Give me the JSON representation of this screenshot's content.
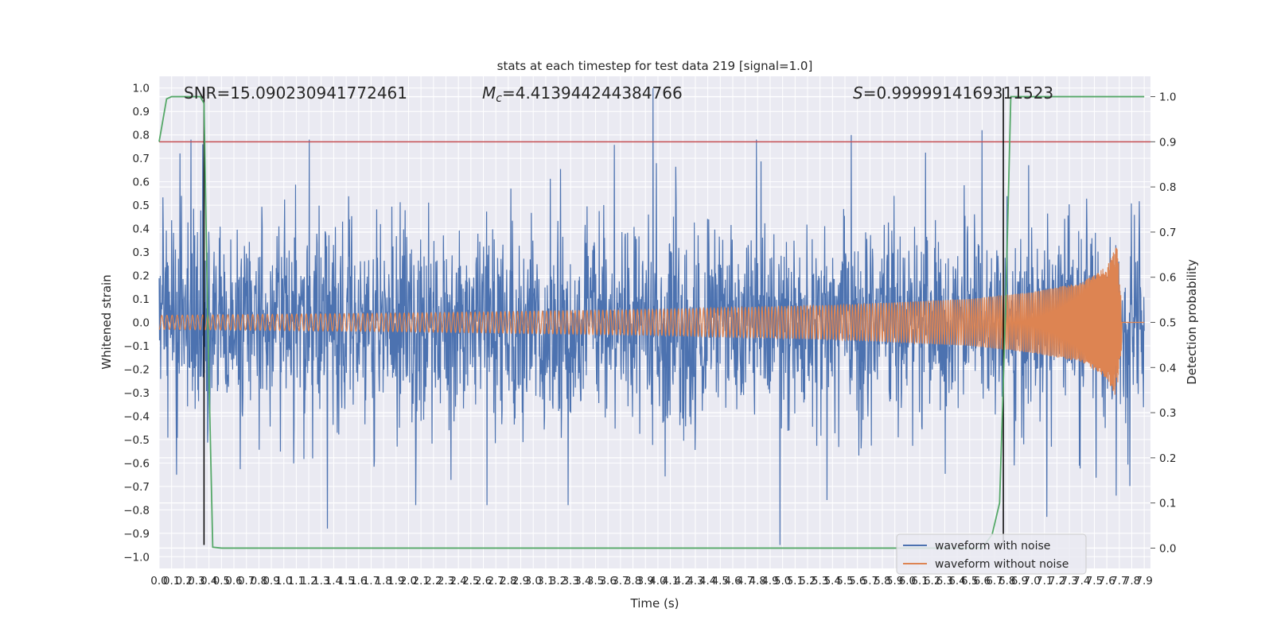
{
  "chart_data": {
    "type": "line",
    "title": "stats at each timestep for test data 219 [signal=1.0]",
    "xlabel": "Time (s)",
    "ylabel": "Whitened strain",
    "y2label": "Detection probability",
    "xlim": [
      0.0,
      7.95
    ],
    "ylim": [
      -1.05,
      1.05
    ],
    "y2lim": [
      -0.045,
      1.045
    ],
    "xticks": [
      0.0,
      0.1,
      0.2,
      0.3,
      0.4,
      0.5,
      0.6,
      0.7,
      0.8,
      0.9,
      1.0,
      1.1,
      1.2,
      1.3,
      1.4,
      1.5,
      1.6,
      1.7,
      1.8,
      1.9,
      2.0,
      2.1,
      2.2,
      2.3,
      2.4,
      2.5,
      2.6,
      2.7,
      2.8,
      2.9,
      3.0,
      3.1,
      3.2,
      3.3,
      3.4,
      3.5,
      3.6,
      3.7,
      3.8,
      3.9,
      4.0,
      4.1,
      4.2,
      4.3,
      4.4,
      4.5,
      4.6,
      4.7,
      4.8,
      4.9,
      5.0,
      5.1,
      5.2,
      5.3,
      5.4,
      5.5,
      5.6,
      5.7,
      5.8,
      5.9,
      6.0,
      6.1,
      6.2,
      6.3,
      6.4,
      6.5,
      6.6,
      6.7,
      6.8,
      6.9,
      7.0,
      7.1,
      7.2,
      7.3,
      7.4,
      7.5,
      7.6,
      7.7,
      7.8,
      7.9
    ],
    "yticks": [
      -1.0,
      -0.9,
      -0.8,
      -0.7,
      -0.6,
      -0.5,
      -0.4,
      -0.3,
      -0.2,
      -0.1,
      0.0,
      0.1,
      0.2,
      0.3,
      0.4,
      0.5,
      0.6,
      0.7,
      0.8,
      0.9,
      1.0
    ],
    "y2ticks": [
      0.0,
      0.1,
      0.2,
      0.3,
      0.4,
      0.5,
      0.6,
      0.7,
      0.8,
      0.9,
      1.0
    ],
    "threshold": 0.9,
    "vlines": [
      0.36,
      6.77
    ],
    "series": [
      {
        "name": "waveform with noise",
        "color": "#4c72b0",
        "peaks": [
          {
            "x": 0.35,
            "y": 0.76
          },
          {
            "x": 3.96,
            "y": 1.0
          },
          {
            "x": 5.55,
            "y": 0.8
          },
          {
            "x": 6.6,
            "y": 0.82
          },
          {
            "x": 1.35,
            "y": -0.88
          },
          {
            "x": 4.98,
            "y": -0.95
          },
          {
            "x": 7.12,
            "y": -0.83
          }
        ]
      },
      {
        "name": "waveform without noise",
        "color": "#dd8452",
        "amplitude": [
          {
            "x": 0.0,
            "y": 0.03
          },
          {
            "x": 2.0,
            "y": 0.04
          },
          {
            "x": 4.0,
            "y": 0.055
          },
          {
            "x": 5.5,
            "y": 0.075
          },
          {
            "x": 6.5,
            "y": 0.1
          },
          {
            "x": 7.0,
            "y": 0.13
          },
          {
            "x": 7.4,
            "y": 0.17
          },
          {
            "x": 7.6,
            "y": 0.24
          },
          {
            "x": 7.68,
            "y": 0.33
          },
          {
            "x": 7.72,
            "y": 0.1
          },
          {
            "x": 7.74,
            "y": 0.0
          },
          {
            "x": 7.95,
            "y": 0.0
          }
        ]
      },
      {
        "name": "detection probability",
        "color": "#55a868",
        "axis": "right",
        "points": [
          {
            "x": 0.0,
            "y": 0.9
          },
          {
            "x": 0.06,
            "y": 0.995
          },
          {
            "x": 0.1,
            "y": 1.0
          },
          {
            "x": 0.33,
            "y": 1.0
          },
          {
            "x": 0.36,
            "y": 0.985
          },
          {
            "x": 0.39,
            "y": 0.5
          },
          {
            "x": 0.43,
            "y": 0.002
          },
          {
            "x": 0.5,
            "y": 0.0
          },
          {
            "x": 6.6,
            "y": 0.0
          },
          {
            "x": 6.68,
            "y": 0.03
          },
          {
            "x": 6.74,
            "y": 0.1
          },
          {
            "x": 6.79,
            "y": 0.55
          },
          {
            "x": 6.83,
            "y": 1.0
          },
          {
            "x": 7.9,
            "y": 1.0
          }
        ]
      }
    ],
    "annotations": {
      "snr": "SNR=15.090230941772461",
      "mc_symbol": "M",
      "mc_sub": "c",
      "mc_value": "=4.413944244384766",
      "s_symbol": "S",
      "s_value": "=0.9999914169311523"
    },
    "legend": {
      "position": "lower-right",
      "entries": [
        "waveform with noise",
        "waveform without noise"
      ]
    }
  }
}
